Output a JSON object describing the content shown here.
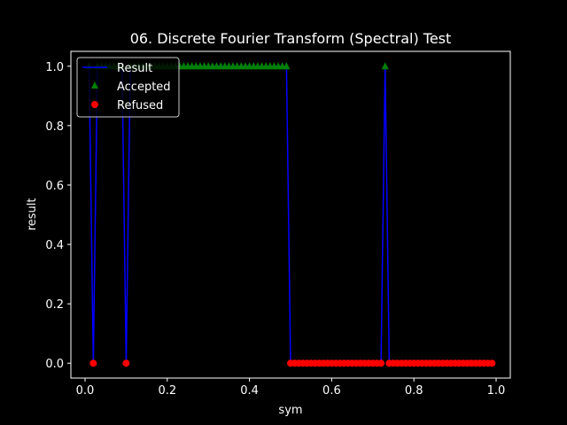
{
  "chart_data": {
    "type": "line",
    "title": "06. Discrete Fourier Transform (Spectral) Test",
    "xlabel": "sym",
    "ylabel": "result",
    "xlim": [
      -0.0345,
      1.0345
    ],
    "ylim": [
      -0.05,
      1.05
    ],
    "xticks": [
      0.0,
      0.2,
      0.4,
      0.6,
      0.8,
      1.0
    ],
    "yticks": [
      0.0,
      0.2,
      0.4,
      0.6,
      0.8,
      1.0
    ],
    "xtick_labels": [
      "0.0",
      "0.2",
      "0.4",
      "0.6",
      "0.8",
      "1.0"
    ],
    "ytick_labels": [
      "0.0",
      "0.2",
      "0.4",
      "0.6",
      "0.8",
      "1.0"
    ],
    "grid": false,
    "legend": {
      "position": "top-left",
      "entries": [
        "Result",
        "Accepted",
        "Refused"
      ]
    },
    "series": [
      {
        "name": "Result",
        "kind": "line",
        "color": "#0000ff",
        "x": [
          0.01,
          0.02,
          0.03,
          0.04,
          0.05,
          0.06,
          0.07,
          0.08,
          0.09,
          0.1,
          0.11,
          0.12,
          0.13,
          0.14,
          0.15,
          0.16,
          0.17,
          0.18,
          0.19,
          0.2,
          0.21,
          0.22,
          0.23,
          0.24,
          0.25,
          0.26,
          0.27,
          0.28,
          0.29,
          0.3,
          0.31,
          0.32,
          0.33,
          0.34,
          0.35,
          0.36,
          0.37,
          0.38,
          0.39,
          0.4,
          0.41,
          0.42,
          0.43,
          0.44,
          0.45,
          0.46,
          0.47,
          0.48,
          0.49,
          0.5,
          0.51,
          0.52,
          0.53,
          0.54,
          0.55,
          0.56,
          0.57,
          0.58,
          0.59,
          0.6,
          0.61,
          0.62,
          0.63,
          0.64,
          0.65,
          0.66,
          0.67,
          0.68,
          0.69,
          0.7,
          0.71,
          0.72,
          0.73,
          0.74,
          0.75,
          0.76,
          0.77,
          0.78,
          0.79,
          0.8,
          0.81,
          0.82,
          0.83,
          0.84,
          0.85,
          0.86,
          0.87,
          0.88,
          0.89,
          0.9,
          0.91,
          0.92,
          0.93,
          0.94,
          0.95,
          0.96,
          0.97,
          0.98,
          0.99
        ],
        "y": [
          1,
          0,
          1,
          1,
          1,
          1,
          1,
          1,
          1,
          0,
          1,
          1,
          1,
          1,
          1,
          1,
          1,
          1,
          1,
          1,
          1,
          1,
          1,
          1,
          1,
          1,
          1,
          1,
          1,
          1,
          1,
          1,
          1,
          1,
          1,
          1,
          1,
          1,
          1,
          1,
          1,
          1,
          1,
          1,
          1,
          1,
          1,
          1,
          1,
          0,
          0,
          0,
          0,
          0,
          0,
          0,
          0,
          0,
          0,
          0,
          0,
          0,
          0,
          0,
          0,
          0,
          0,
          0,
          0,
          0,
          0,
          0,
          1,
          0,
          0,
          0,
          0,
          0,
          0,
          0,
          0,
          0,
          0,
          0,
          0,
          0,
          0,
          0,
          0,
          0,
          0,
          0,
          0,
          0,
          0,
          0,
          0,
          0,
          0
        ]
      },
      {
        "name": "Accepted",
        "kind": "markers",
        "marker": "triangle",
        "color": "#008000",
        "x": [
          0.01,
          0.03,
          0.04,
          0.05,
          0.06,
          0.07,
          0.08,
          0.09,
          0.11,
          0.12,
          0.13,
          0.14,
          0.15,
          0.16,
          0.17,
          0.18,
          0.19,
          0.2,
          0.21,
          0.22,
          0.23,
          0.24,
          0.25,
          0.26,
          0.27,
          0.28,
          0.29,
          0.3,
          0.31,
          0.32,
          0.33,
          0.34,
          0.35,
          0.36,
          0.37,
          0.38,
          0.39,
          0.4,
          0.41,
          0.42,
          0.43,
          0.44,
          0.45,
          0.46,
          0.47,
          0.48,
          0.49,
          0.73
        ],
        "y": [
          1,
          1,
          1,
          1,
          1,
          1,
          1,
          1,
          1,
          1,
          1,
          1,
          1,
          1,
          1,
          1,
          1,
          1,
          1,
          1,
          1,
          1,
          1,
          1,
          1,
          1,
          1,
          1,
          1,
          1,
          1,
          1,
          1,
          1,
          1,
          1,
          1,
          1,
          1,
          1,
          1,
          1,
          1,
          1,
          1,
          1,
          1,
          1
        ]
      },
      {
        "name": "Refused",
        "kind": "markers",
        "marker": "circle",
        "color": "#ff0000",
        "x": [
          0.02,
          0.1,
          0.5,
          0.51,
          0.52,
          0.53,
          0.54,
          0.55,
          0.56,
          0.57,
          0.58,
          0.59,
          0.6,
          0.61,
          0.62,
          0.63,
          0.64,
          0.65,
          0.66,
          0.67,
          0.68,
          0.69,
          0.7,
          0.71,
          0.72,
          0.74,
          0.75,
          0.76,
          0.77,
          0.78,
          0.79,
          0.8,
          0.81,
          0.82,
          0.83,
          0.84,
          0.85,
          0.86,
          0.87,
          0.88,
          0.89,
          0.9,
          0.91,
          0.92,
          0.93,
          0.94,
          0.95,
          0.96,
          0.97,
          0.98,
          0.99
        ],
        "y": [
          0,
          0,
          0,
          0,
          0,
          0,
          0,
          0,
          0,
          0,
          0,
          0,
          0,
          0,
          0,
          0,
          0,
          0,
          0,
          0,
          0,
          0,
          0,
          0,
          0,
          0,
          0,
          0,
          0,
          0,
          0,
          0,
          0,
          0,
          0,
          0,
          0,
          0,
          0,
          0,
          0,
          0,
          0,
          0,
          0,
          0,
          0,
          0,
          0,
          0,
          0
        ]
      }
    ]
  }
}
